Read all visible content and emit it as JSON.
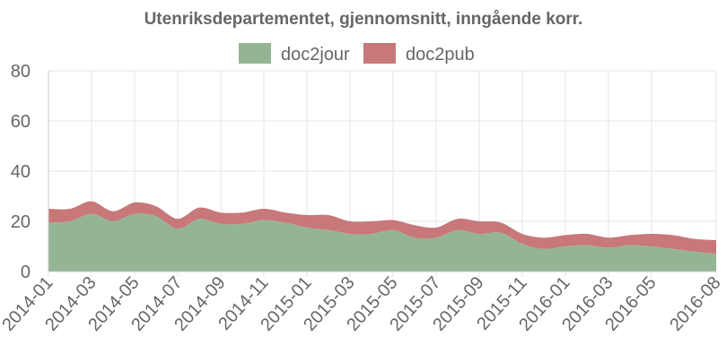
{
  "chart_data": {
    "type": "area",
    "stacked": true,
    "title": "Utenriksdepartementet, gjennomsnitt, inngående korr.",
    "xlabel": "",
    "ylabel": "",
    "ylim": [
      0,
      80
    ],
    "yticks": [
      0,
      20,
      40,
      60,
      80
    ],
    "grid": true,
    "legend": "top-center",
    "xtick_labels": [
      "2014-01",
      "2014-03",
      "2014-05",
      "2014-07",
      "2014-09",
      "2014-11",
      "2015-01",
      "2015-03",
      "2015-05",
      "2015-07",
      "2015-09",
      "2015-11",
      "2016-01",
      "2016-03",
      "2016-05",
      "2016-08"
    ],
    "x": [
      "2014-01",
      "2014-02",
      "2014-03",
      "2014-04",
      "2014-05",
      "2014-06",
      "2014-07",
      "2014-08",
      "2014-09",
      "2014-10",
      "2014-11",
      "2014-12",
      "2015-01",
      "2015-02",
      "2015-03",
      "2015-04",
      "2015-05",
      "2015-06",
      "2015-07",
      "2015-08",
      "2015-09",
      "2015-10",
      "2015-11",
      "2015-12",
      "2016-01",
      "2016-02",
      "2016-03",
      "2016-04",
      "2016-05",
      "2016-06",
      "2016-07",
      "2016-08"
    ],
    "series": [
      {
        "name": "doc2jour",
        "color": "#94b594",
        "values": [
          19.5,
          20,
          23,
          20,
          23,
          22,
          17,
          21,
          19,
          19,
          20.5,
          19.5,
          17.5,
          16.5,
          15,
          15,
          16.5,
          13.5,
          13.5,
          16.5,
          15,
          15.5,
          11,
          9,
          10,
          10.5,
          9.5,
          10.5,
          10,
          9,
          8,
          7
        ]
      },
      {
        "name": "doc2pub",
        "color": "#c87878",
        "values": [
          5.5,
          5,
          5,
          4,
          4.5,
          4,
          4,
          4.5,
          4.5,
          4.5,
          4.5,
          4,
          5,
          6,
          5,
          5,
          4,
          5,
          4,
          4.5,
          5,
          4,
          4,
          4.5,
          4.5,
          4.5,
          4,
          4,
          5,
          5.5,
          5,
          5.5
        ]
      }
    ]
  }
}
